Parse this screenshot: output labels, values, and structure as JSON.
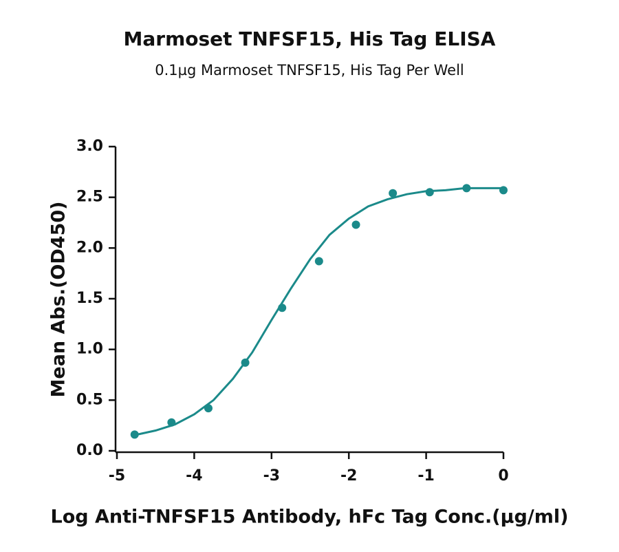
{
  "chart_data": {
    "type": "scatter",
    "title": "Marmoset TNFSF15, His Tag ELISA",
    "subtitle": "0.1µg Marmoset TNFSF15, His Tag Per Well",
    "x_label": "Log Anti-TNFSF15 Antibody, hFc Tag Conc.(µg/ml)",
    "y_label": "Mean Abs.(OD450)",
    "color": "#1b8a8a",
    "x": [
      -4.771,
      -4.294,
      -3.817,
      -3.34,
      -2.863,
      -2.386,
      -1.908,
      -1.431,
      -0.954,
      -0.477,
      0
    ],
    "values": [
      0.16,
      0.28,
      0.42,
      0.87,
      1.41,
      1.87,
      2.23,
      2.54,
      2.55,
      2.59,
      2.57
    ],
    "fit": {
      "x": [
        -4.8,
        -4.5,
        -4.25,
        -4.0,
        -3.75,
        -3.5,
        -3.25,
        -3.0,
        -2.75,
        -2.5,
        -2.25,
        -2.0,
        -1.75,
        -1.5,
        -1.25,
        -1.0,
        -0.75,
        -0.5,
        -0.25,
        0
      ],
      "values": [
        0.15,
        0.2,
        0.26,
        0.36,
        0.5,
        0.71,
        0.97,
        1.29,
        1.6,
        1.89,
        2.13,
        2.29,
        2.41,
        2.48,
        2.53,
        2.56,
        2.57,
        2.59,
        2.59,
        2.59
      ]
    },
    "xlim": [
      -5,
      0
    ],
    "ylim": [
      0,
      3
    ],
    "xticks": [
      -5,
      -4,
      -3,
      -2,
      -1,
      0
    ],
    "yticks": [
      {
        "value": 0,
        "label": "0.0"
      },
      0.5,
      {
        "value": 1,
        "label": "1.0"
      },
      1.5,
      {
        "value": 2,
        "label": "2.0"
      },
      2.5,
      {
        "value": 3,
        "label": "3.0"
      }
    ]
  }
}
